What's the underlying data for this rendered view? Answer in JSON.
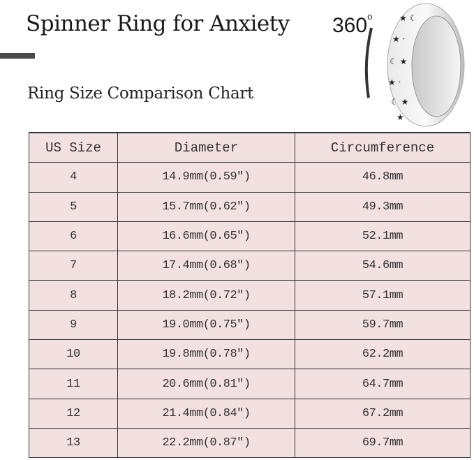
{
  "header": {
    "title": "Spinner Ring for Anxiety",
    "rotation_label": "360",
    "rotation_unit": "o",
    "subtitle": "Ring Size Comparison Chart"
  },
  "table": {
    "columns": [
      "US Size",
      "Diameter",
      "Circumference"
    ],
    "rows": [
      [
        "4",
        "14.9mm(0.59″)",
        "46.8mm"
      ],
      [
        "5",
        "15.7mm(0.62″)",
        "49.3mm"
      ],
      [
        "6",
        "16.6mm(0.65″)",
        "52.1mm"
      ],
      [
        "7",
        "17.4mm(0.68″)",
        "54.6mm"
      ],
      [
        "8",
        "18.2mm(0.72″)",
        "57.1mm"
      ],
      [
        "9",
        "19.0mm(0.75″)",
        "59.7mm"
      ],
      [
        "10",
        "19.8mm(0.78″)",
        "62.2mm"
      ],
      [
        "11",
        "20.6mm(0.81″)",
        "64.7mm"
      ],
      [
        "12",
        "21.4mm(0.84″)",
        "67.2mm"
      ],
      [
        "13",
        "22.2mm(0.87″)",
        "69.7mm"
      ]
    ]
  },
  "colors": {
    "table_bg": "#f3e0e1",
    "border": "#333333",
    "accent_bar": "#4a4a4a"
  },
  "icons": {
    "ring": "spinner-ring-moon-star-image"
  }
}
